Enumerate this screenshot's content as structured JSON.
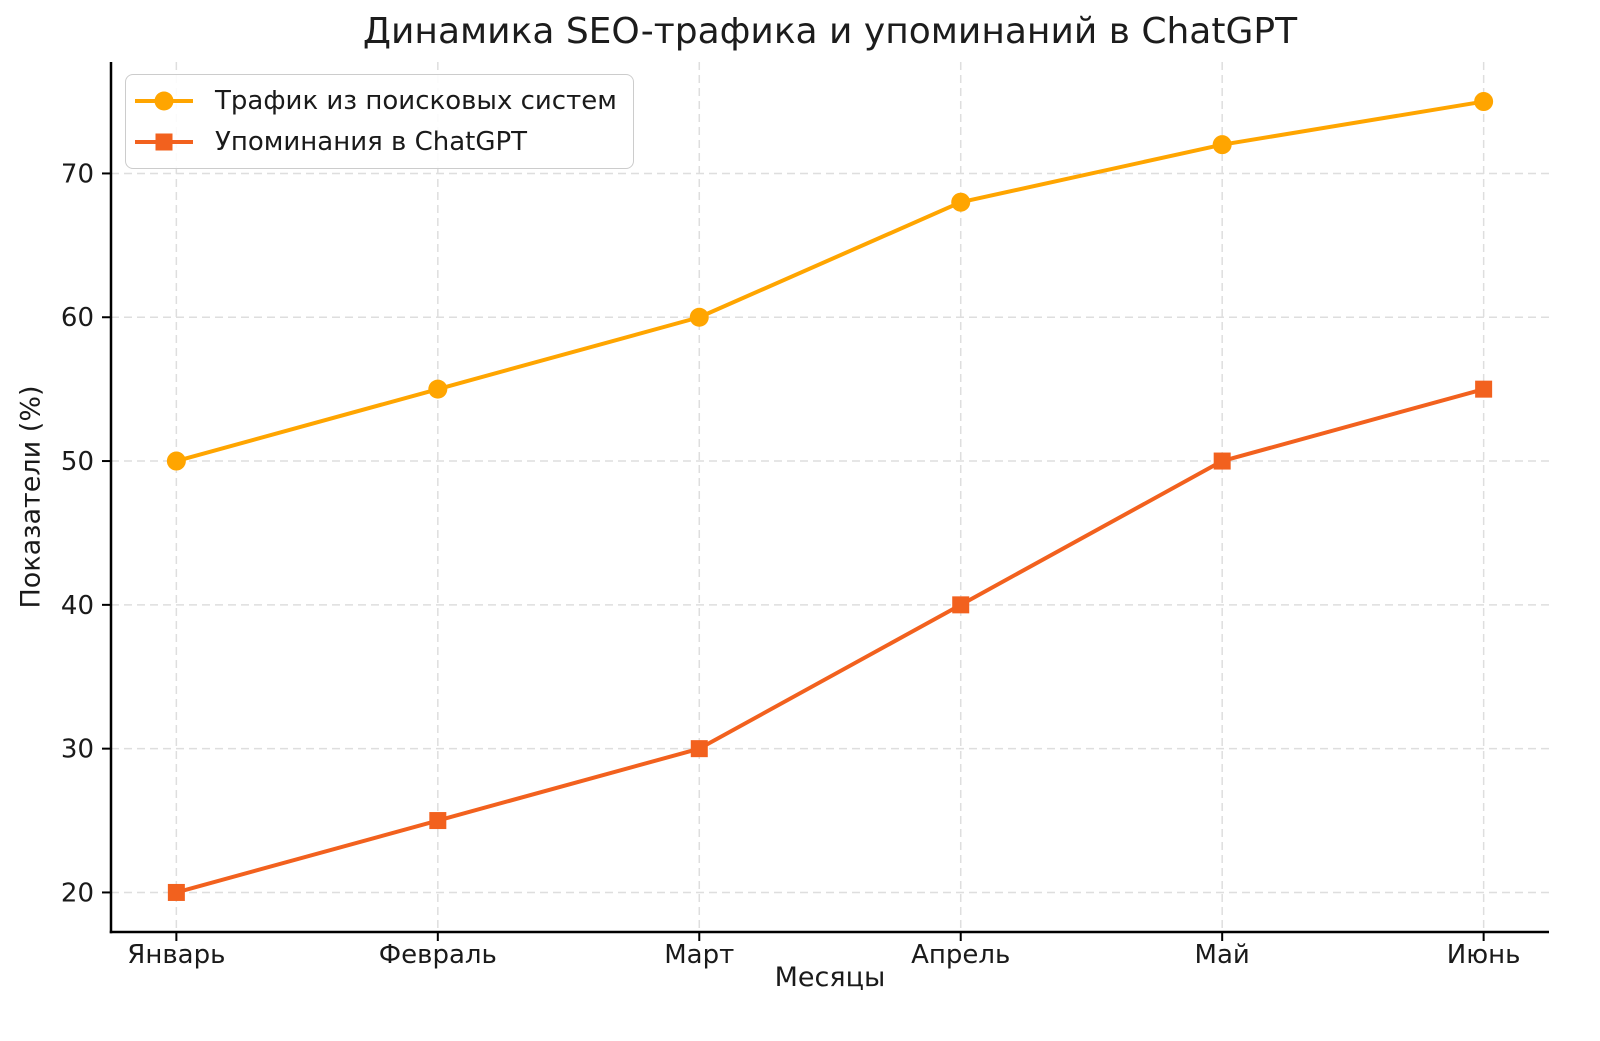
{
  "page": {
    "background_color": "#ffffff",
    "text_color": "#1a1a1a",
    "grid_color": "#dedede",
    "axis_color": "#000000"
  },
  "chart_data": {
    "type": "line",
    "title": "Динамика SEO-трафика и упоминаний в ChatGPT",
    "xlabel": "Месяцы",
    "ylabel": "Показатели (%)",
    "categories": [
      "Январь",
      "Февраль",
      "Март",
      "Апрель",
      "Май",
      "Июнь"
    ],
    "series": [
      {
        "name": "Трафик из поисковых систем",
        "color": "#FFA500",
        "marker": "circle",
        "values": [
          50,
          55,
          60,
          68,
          72,
          75
        ]
      },
      {
        "name": "Упоминания в ChatGPT",
        "color": "#F2611E",
        "marker": "square",
        "values": [
          20,
          25,
          30,
          40,
          50,
          55
        ]
      }
    ],
    "yticks": [
      20,
      30,
      40,
      50,
      60,
      70
    ],
    "ylim": [
      17.25,
      77.75
    ],
    "grid": {
      "visible": true,
      "style": "dashed"
    },
    "legend": {
      "position": "upper-left"
    }
  }
}
